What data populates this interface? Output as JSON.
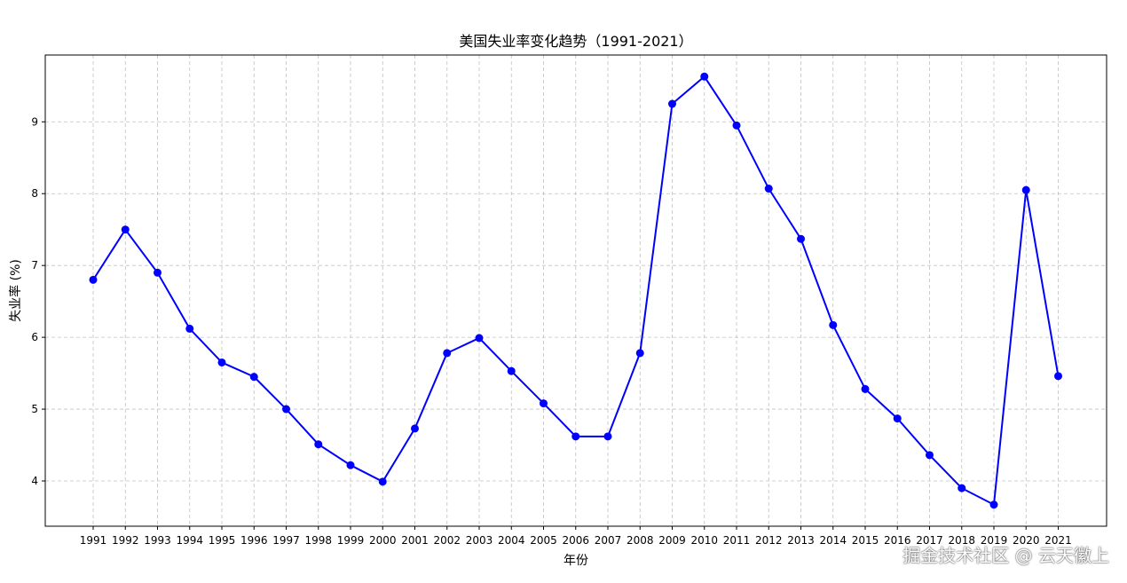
{
  "chart_data": {
    "type": "line",
    "title": "美国失业率变化趋势（1991-2021）",
    "xlabel": "年份",
    "ylabel": "失业率 (%)",
    "categories": [
      "1991",
      "1992",
      "1993",
      "1994",
      "1995",
      "1996",
      "1997",
      "1998",
      "1999",
      "2000",
      "2001",
      "2002",
      "2003",
      "2004",
      "2005",
      "2006",
      "2007",
      "2008",
      "2009",
      "2010",
      "2011",
      "2012",
      "2013",
      "2014",
      "2015",
      "2016",
      "2017",
      "2018",
      "2019",
      "2020",
      "2021"
    ],
    "series": [
      {
        "values": [
          6.8,
          7.5,
          6.9,
          6.12,
          5.65,
          5.45,
          5.0,
          4.51,
          4.22,
          3.99,
          4.73,
          5.78,
          5.99,
          5.53,
          5.08,
          4.62,
          4.62,
          5.78,
          9.25,
          9.63,
          8.95,
          8.07,
          7.37,
          6.17,
          5.28,
          4.87,
          4.36,
          3.9,
          3.67,
          8.05,
          5.46
        ],
        "color": "#0000ff",
        "marker": "circle"
      }
    ],
    "yticks": [
      4,
      5,
      6,
      7,
      8,
      9
    ],
    "ylim": [
      3.37,
      9.93
    ],
    "grid": true,
    "grid_style": "dashed"
  },
  "watermark": "掘金技术社区 @ 云天徽上"
}
